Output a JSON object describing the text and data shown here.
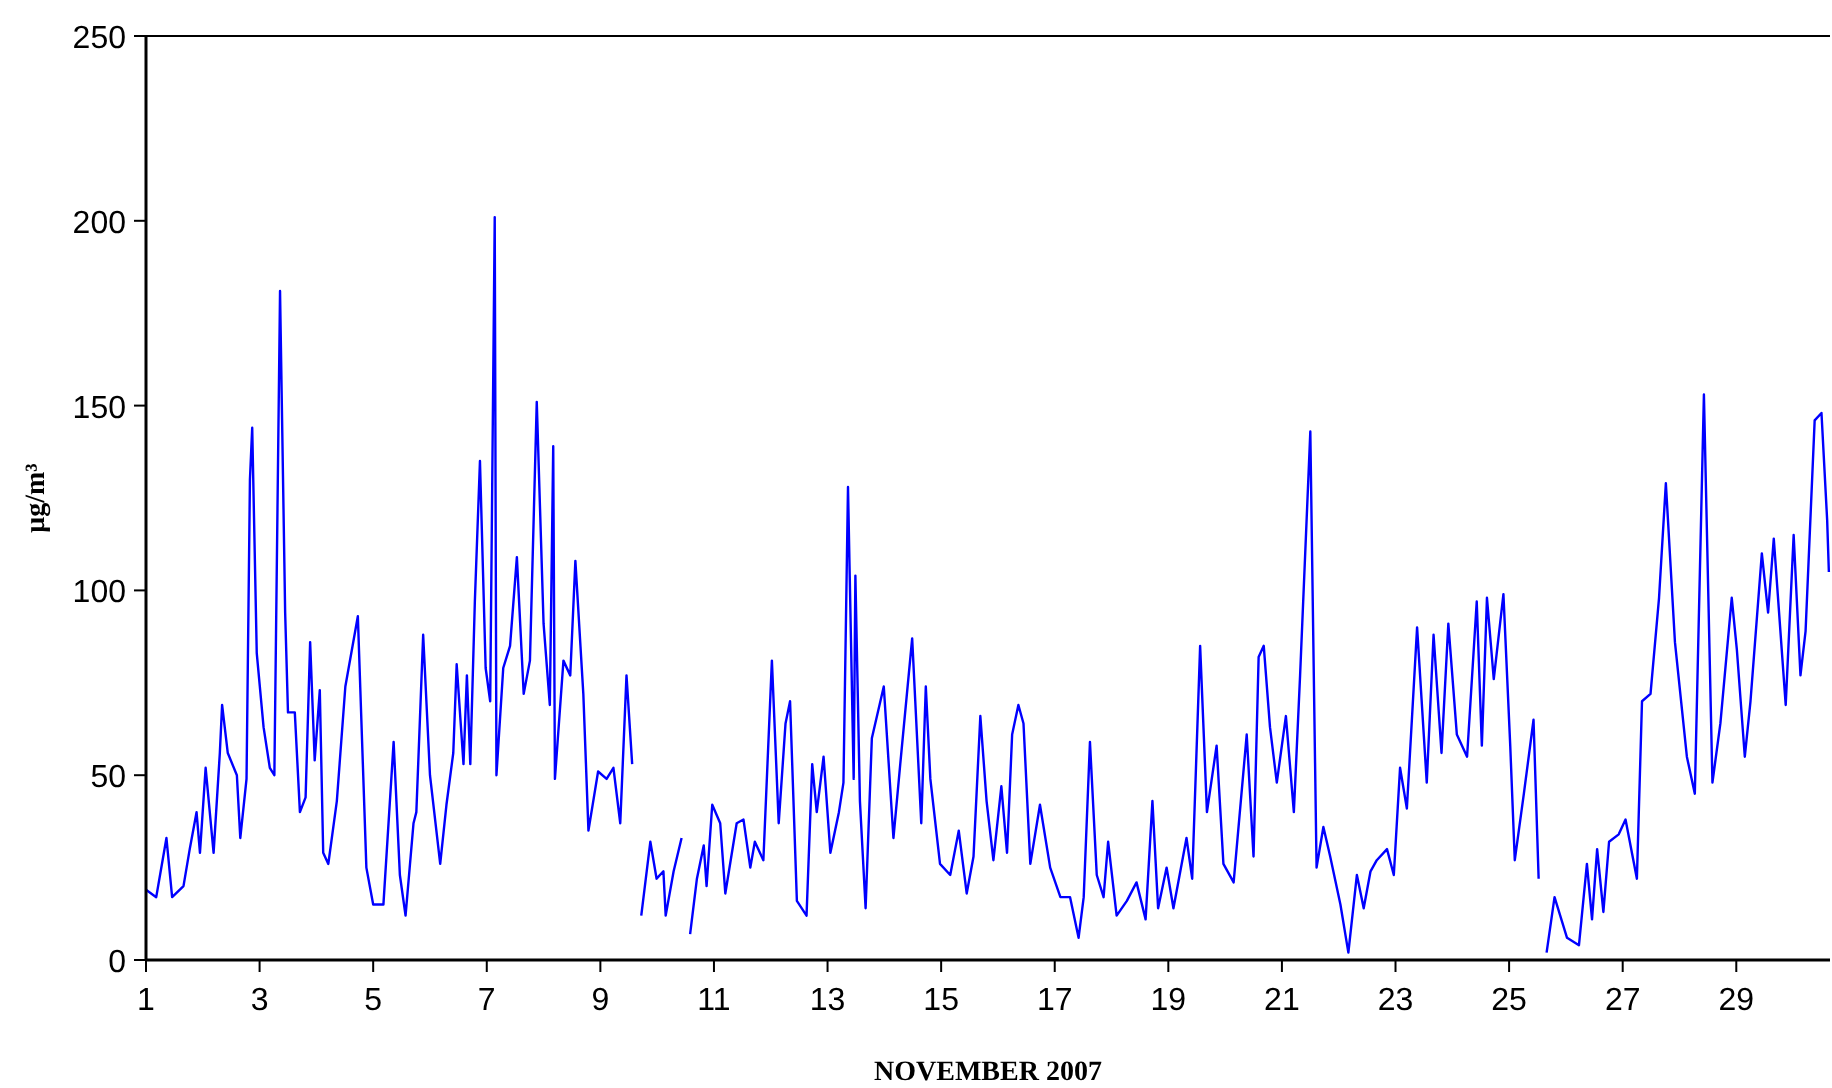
{
  "chart_data": {
    "type": "line",
    "xlabel": "NOVEMBER 2007",
    "ylabel": "μg/m³",
    "xlim": [
      1,
      30.65
    ],
    "xticks": [
      1,
      3,
      5,
      7,
      9,
      11,
      13,
      15,
      17,
      19,
      21,
      23,
      25,
      27,
      29
    ],
    "ylim": [
      0,
      250
    ],
    "yticks": [
      0,
      50,
      100,
      150,
      200,
      250
    ],
    "marker": "none",
    "line_style": "solid",
    "series": [
      {
        "color": "#0000ff",
        "x": [
          1.0,
          1.18,
          1.36,
          1.46,
          1.66,
          1.77,
          1.89,
          1.95,
          2.05,
          2.19,
          2.3,
          2.34,
          2.44,
          2.6,
          2.66,
          2.77,
          2.83,
          2.87,
          2.95,
          3.07,
          3.18,
          3.26,
          3.36,
          3.45,
          3.5,
          3.62,
          3.71,
          3.81,
          3.89,
          3.97,
          4.06,
          4.12,
          4.21,
          4.36,
          4.51,
          4.73,
          4.88,
          5.0,
          5.18,
          5.36,
          5.47,
          5.57,
          5.71,
          5.76,
          5.88,
          6.0,
          6.18,
          6.29,
          6.41,
          6.47,
          6.59,
          6.65,
          6.71,
          6.79,
          6.88,
          6.98,
          7.06,
          7.14,
          7.17,
          7.29,
          7.41,
          7.53,
          7.65,
          7.76,
          7.88,
          8.0,
          8.11,
          8.17,
          8.2,
          8.35,
          8.47,
          8.56,
          8.7,
          8.79,
          8.96,
          9.11,
          9.23,
          9.35,
          9.46,
          9.56,
          9.64,
          9.72,
          9.88,
          9.99,
          10.11,
          10.15,
          10.29,
          10.43,
          10.5,
          10.58,
          10.7,
          10.82,
          10.87,
          10.97,
          11.11,
          11.2,
          11.4,
          11.52,
          11.64,
          11.72,
          11.87,
          12.02,
          12.14,
          12.26,
          12.34,
          12.46,
          12.63,
          12.73,
          12.81,
          12.93,
          13.05,
          13.2,
          13.28,
          13.36,
          13.46,
          13.49,
          13.57,
          13.67,
          13.78,
          13.99,
          14.16,
          14.28,
          14.49,
          14.65,
          14.73,
          14.81,
          14.98,
          15.16,
          15.31,
          15.45,
          15.57,
          15.69,
          15.8,
          15.92,
          16.06,
          16.16,
          16.25,
          16.36,
          16.45,
          16.57,
          16.74,
          16.92,
          17.1,
          17.27,
          17.42,
          17.51,
          17.62,
          17.74,
          17.86,
          17.94,
          18.09,
          18.27,
          18.44,
          18.6,
          18.72,
          18.82,
          18.97,
          19.09,
          19.32,
          19.42,
          19.56,
          19.68,
          19.85,
          19.97,
          20.15,
          20.38,
          20.5,
          20.59,
          20.68,
          20.79,
          20.91,
          21.07,
          21.21,
          21.32,
          21.5,
          21.61,
          21.73,
          21.85,
          22.03,
          22.17,
          22.32,
          22.44,
          22.56,
          22.67,
          22.85,
          22.97,
          23.08,
          23.2,
          23.38,
          23.55,
          23.67,
          23.81,
          23.93,
          24.08,
          24.26,
          24.43,
          24.52,
          24.61,
          24.73,
          24.9,
          25.02,
          25.1,
          25.26,
          25.43,
          25.52,
          25.59,
          25.66,
          25.8,
          26.02,
          26.23,
          26.37,
          26.46,
          26.55,
          26.66,
          26.76,
          26.93,
          27.05,
          27.25,
          27.34,
          27.49,
          27.64,
          27.76,
          27.92,
          28.13,
          28.27,
          28.43,
          28.58,
          28.72,
          28.92,
          29.01,
          29.15,
          29.25,
          29.45,
          29.56,
          29.66,
          29.87,
          30.01,
          30.13,
          30.22,
          30.38,
          30.5,
          30.6,
          30.63
        ],
        "values": [
          19,
          17,
          33,
          17,
          20,
          30,
          40,
          29,
          52,
          29,
          56,
          69,
          56,
          50,
          33,
          49,
          130,
          144,
          83,
          63,
          52,
          50,
          181,
          94,
          67,
          67,
          40,
          44,
          86,
          54,
          73,
          29,
          26,
          43,
          74,
          93,
          25,
          15,
          15,
          59,
          23,
          12,
          37,
          40,
          88,
          50,
          26,
          42,
          56,
          80,
          53,
          77,
          53,
          97,
          135,
          79,
          70,
          201,
          50,
          79,
          85,
          109,
          72,
          81,
          151,
          91,
          69,
          139,
          49,
          81,
          77,
          108,
          72,
          35,
          51,
          49,
          52,
          37,
          77,
          53,
          null,
          12,
          32,
          22,
          24,
          12,
          24,
          33,
          null,
          7,
          22,
          31,
          20,
          42,
          37,
          18,
          37,
          38,
          25,
          32,
          27,
          81,
          37,
          64,
          70,
          16,
          12,
          53,
          40,
          55,
          29,
          40,
          48,
          128,
          49,
          104,
          43,
          14,
          60,
          74,
          33,
          53,
          87,
          37,
          74,
          49,
          26,
          23,
          35,
          18,
          28,
          66,
          43,
          27,
          47,
          29,
          61,
          69,
          64,
          26,
          42,
          25,
          17,
          17,
          6,
          17,
          59,
          23,
          17,
          32,
          12,
          16,
          21,
          11,
          43,
          14,
          25,
          14,
          33,
          22,
          85,
          40,
          58,
          26,
          21,
          61,
          28,
          82,
          85,
          63,
          48,
          66,
          40,
          77,
          143,
          25,
          36,
          28,
          15,
          2,
          23,
          14,
          24,
          27,
          30,
          23,
          52,
          41,
          90,
          48,
          88,
          56,
          91,
          61,
          55,
          97,
          58,
          98,
          76,
          99,
          58,
          27,
          45,
          65,
          22,
          null,
          2,
          17,
          6,
          4,
          26,
          11,
          30,
          13,
          32,
          34,
          38,
          22,
          70,
          72,
          98,
          129,
          86,
          55,
          45,
          153,
          48,
          64,
          98,
          84,
          55,
          70,
          110,
          94,
          114,
          69,
          115,
          77,
          89,
          146,
          148,
          119,
          105
        ]
      }
    ]
  }
}
